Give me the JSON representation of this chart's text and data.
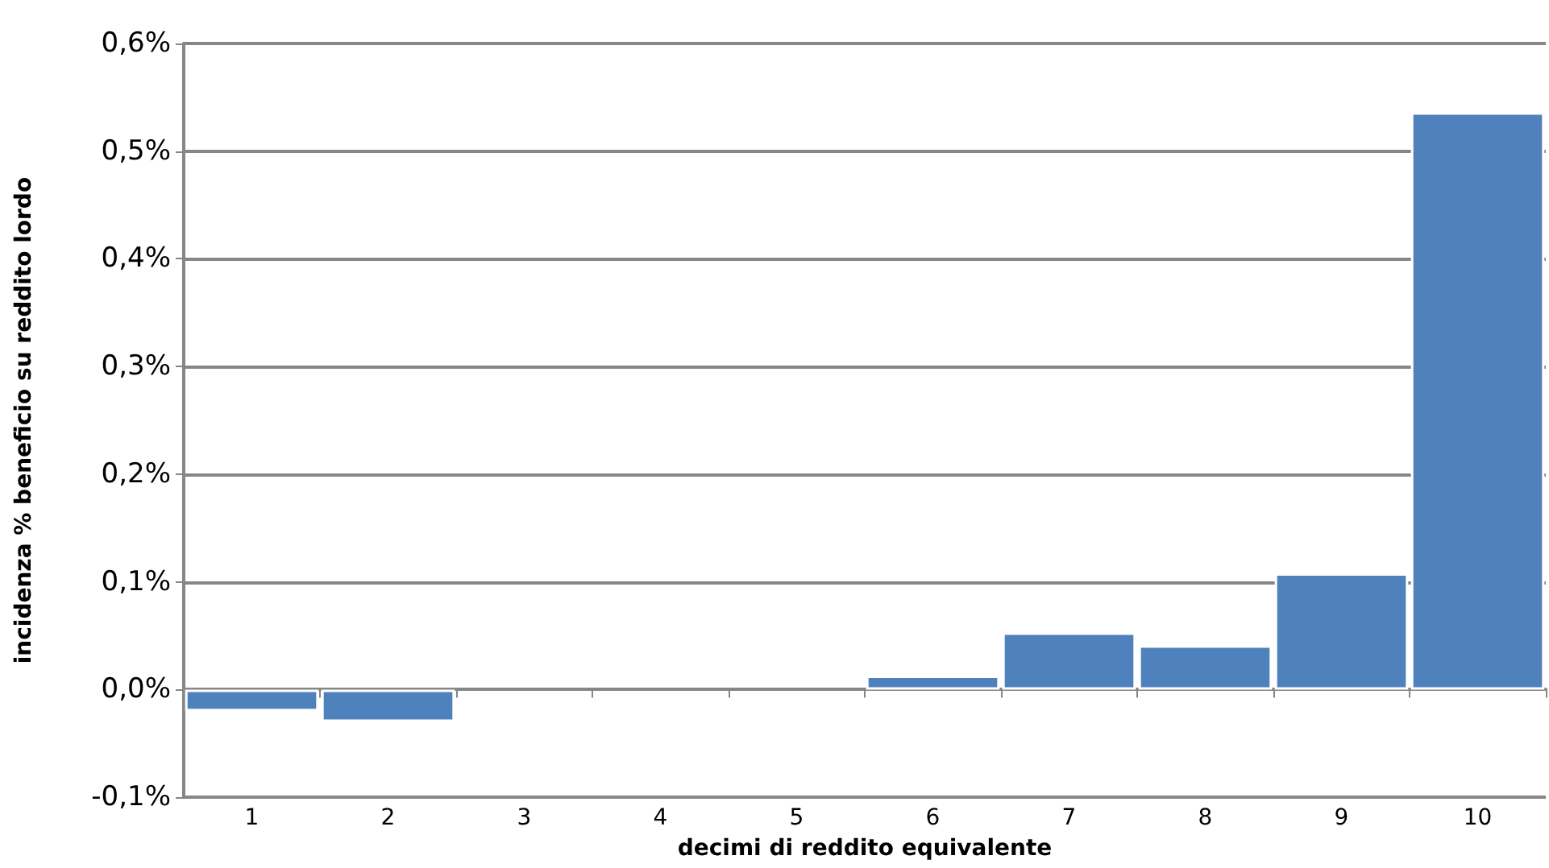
{
  "chart_data": {
    "type": "bar",
    "xlabel": "decimi di reddito equivalente",
    "ylabel": "incidenza % beneficio su reddito lordo",
    "categories": [
      "1",
      "2",
      "3",
      "4",
      "5",
      "6",
      "7",
      "8",
      "9",
      "10"
    ],
    "values": [
      -0.02,
      -0.03,
      0,
      0,
      0,
      0.013,
      0.053,
      0.041,
      0.108,
      0.536
    ],
    "color": "#4f81bd",
    "ylim": [
      -0.1,
      0.6
    ],
    "yticks": [
      {
        "value": -0.1,
        "label": "-0,1%"
      },
      {
        "value": 0,
        "label": "0,0%"
      },
      {
        "value": 0.1,
        "label": "0,1%"
      },
      {
        "value": 0.2,
        "label": "0,2%"
      },
      {
        "value": 0.3,
        "label": "0,3%"
      },
      {
        "value": 0.4,
        "label": "0,4%"
      },
      {
        "value": 0.5,
        "label": "0,5%"
      },
      {
        "value": 0.6,
        "label": "0,6%"
      }
    ],
    "grid": "y"
  }
}
